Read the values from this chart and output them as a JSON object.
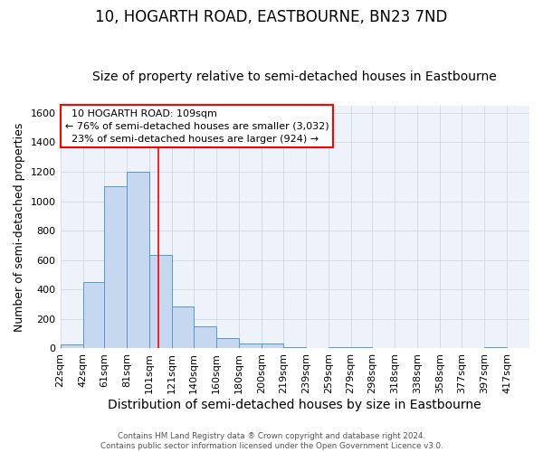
{
  "title": "10, HOGARTH ROAD, EASTBOURNE, BN23 7ND",
  "subtitle": "Size of property relative to semi-detached houses in Eastbourne",
  "xlabel": "Distribution of semi-detached houses by size in Eastbourne",
  "ylabel": "Number of semi-detached properties",
  "footer_line1": "Contains HM Land Registry data ® Crown copyright and database right 2024.",
  "footer_line2": "Contains public sector information licensed under the Open Government Licence v3.0.",
  "bar_labels": [
    "22sqm",
    "42sqm",
    "61sqm",
    "81sqm",
    "101sqm",
    "121sqm",
    "140sqm",
    "160sqm",
    "180sqm",
    "200sqm",
    "219sqm",
    "239sqm",
    "259sqm",
    "279sqm",
    "298sqm",
    "318sqm",
    "338sqm",
    "358sqm",
    "377sqm",
    "397sqm",
    "417sqm"
  ],
  "bar_values": [
    25,
    450,
    1100,
    1200,
    635,
    285,
    152,
    68,
    35,
    32,
    10,
    5,
    12,
    8,
    3,
    3,
    3,
    3,
    3,
    10,
    3
  ],
  "bar_color": "#c5d8f0",
  "bar_edge_color": "#5599cc",
  "grid_color": "#d0d8e8",
  "background_color": "#edf2fb",
  "property_size": 109,
  "property_label": "10 HOGARTH ROAD: 109sqm",
  "pct_smaller": 76,
  "pct_smaller_count": "3,032",
  "pct_larger": 23,
  "pct_larger_count": "924",
  "red_line_x": 109,
  "ylim": [
    0,
    1650
  ],
  "title_fontsize": 12,
  "subtitle_fontsize": 10,
  "xlabel_fontsize": 10,
  "ylabel_fontsize": 9,
  "tick_fontsize": 8,
  "ann_fontsize": 8,
  "bar_bin_edges": [
    22,
    42,
    61,
    81,
    101,
    121,
    140,
    160,
    180,
    200,
    219,
    239,
    259,
    279,
    298,
    318,
    338,
    358,
    377,
    397,
    417,
    437
  ]
}
